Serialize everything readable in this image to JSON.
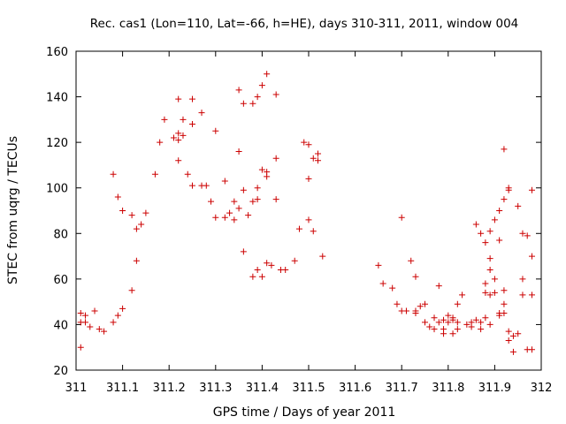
{
  "chart_data": {
    "type": "scatter",
    "title": "Rec. cas1 (Lon=110, Lat=-66, h=HE), days 310-311, 2011, window 004",
    "xlabel": "GPS time / Days of year 2011",
    "ylabel": "STEC from uqrg / TECUs",
    "xlim": [
      311,
      312
    ],
    "ylim": [
      20,
      160
    ],
    "x_ticks": [
      311,
      311.1,
      311.2,
      311.3,
      311.4,
      311.5,
      311.6,
      311.7,
      311.8,
      311.9,
      312
    ],
    "x_tick_labels": [
      "311",
      "311.1",
      "311.2",
      "311.3",
      "311.4",
      "311.5",
      "311.6",
      "311.7",
      "311.8",
      "311.9",
      "312"
    ],
    "y_ticks": [
      20,
      40,
      60,
      80,
      100,
      120,
      140,
      160
    ],
    "y_tick_labels": [
      "20",
      "40",
      "60",
      "80",
      "100",
      "120",
      "140",
      "160"
    ],
    "marker": "+",
    "color": "#cc0000",
    "series": [
      {
        "name": "STEC",
        "points": [
          [
            311.01,
            30
          ],
          [
            311.01,
            41
          ],
          [
            311.01,
            45
          ],
          [
            311.02,
            44
          ],
          [
            311.02,
            41
          ],
          [
            311.03,
            39
          ],
          [
            311.04,
            46
          ],
          [
            311.05,
            38
          ],
          [
            311.06,
            37
          ],
          [
            311.08,
            41
          ],
          [
            311.08,
            106
          ],
          [
            311.09,
            44
          ],
          [
            311.09,
            96
          ],
          [
            311.1,
            47
          ],
          [
            311.1,
            90
          ],
          [
            311.12,
            55
          ],
          [
            311.12,
            88
          ],
          [
            311.13,
            68
          ],
          [
            311.13,
            82
          ],
          [
            311.14,
            84
          ],
          [
            311.15,
            89
          ],
          [
            311.17,
            106
          ],
          [
            311.18,
            120
          ],
          [
            311.19,
            130
          ],
          [
            311.21,
            122
          ],
          [
            311.22,
            112
          ],
          [
            311.22,
            121
          ],
          [
            311.22,
            124
          ],
          [
            311.22,
            139
          ],
          [
            311.23,
            123
          ],
          [
            311.23,
            130
          ],
          [
            311.24,
            106
          ],
          [
            311.25,
            101
          ],
          [
            311.25,
            128
          ],
          [
            311.25,
            139
          ],
          [
            311.27,
            101
          ],
          [
            311.27,
            133
          ],
          [
            311.28,
            101
          ],
          [
            311.29,
            94
          ],
          [
            311.3,
            87
          ],
          [
            311.3,
            125
          ],
          [
            311.32,
            87
          ],
          [
            311.32,
            103
          ],
          [
            311.33,
            89
          ],
          [
            311.34,
            94
          ],
          [
            311.34,
            86
          ],
          [
            311.35,
            143
          ],
          [
            311.35,
            116
          ],
          [
            311.35,
            91
          ],
          [
            311.36,
            72
          ],
          [
            311.36,
            99
          ],
          [
            311.36,
            137
          ],
          [
            311.37,
            88
          ],
          [
            311.38,
            137
          ],
          [
            311.38,
            94
          ],
          [
            311.38,
            61
          ],
          [
            311.39,
            64
          ],
          [
            311.39,
            95
          ],
          [
            311.39,
            100
          ],
          [
            311.39,
            140
          ],
          [
            311.4,
            108
          ],
          [
            311.4,
            145
          ],
          [
            311.4,
            61
          ],
          [
            311.41,
            107
          ],
          [
            311.41,
            105
          ],
          [
            311.41,
            67
          ],
          [
            311.41,
            150
          ],
          [
            311.42,
            66
          ],
          [
            311.43,
            113
          ],
          [
            311.43,
            141
          ],
          [
            311.43,
            95
          ],
          [
            311.44,
            64
          ],
          [
            311.45,
            64
          ],
          [
            311.47,
            68
          ],
          [
            311.48,
            82
          ],
          [
            311.49,
            120
          ],
          [
            311.5,
            119
          ],
          [
            311.5,
            104
          ],
          [
            311.5,
            86
          ],
          [
            311.51,
            81
          ],
          [
            311.51,
            113
          ],
          [
            311.52,
            112
          ],
          [
            311.52,
            115
          ],
          [
            311.53,
            70
          ],
          [
            311.65,
            66
          ],
          [
            311.66,
            58
          ],
          [
            311.68,
            56
          ],
          [
            311.69,
            49
          ],
          [
            311.7,
            87
          ],
          [
            311.7,
            46
          ],
          [
            311.71,
            46
          ],
          [
            311.72,
            68
          ],
          [
            311.73,
            61
          ],
          [
            311.73,
            45
          ],
          [
            311.73,
            46
          ],
          [
            311.74,
            48
          ],
          [
            311.75,
            41
          ],
          [
            311.75,
            49
          ],
          [
            311.76,
            39
          ],
          [
            311.77,
            38
          ],
          [
            311.77,
            43
          ],
          [
            311.78,
            57
          ],
          [
            311.78,
            41
          ],
          [
            311.79,
            36
          ],
          [
            311.79,
            38
          ],
          [
            311.79,
            42
          ],
          [
            311.8,
            41
          ],
          [
            311.8,
            44
          ],
          [
            311.81,
            42
          ],
          [
            311.81,
            36
          ],
          [
            311.81,
            43
          ],
          [
            311.82,
            49
          ],
          [
            311.82,
            38
          ],
          [
            311.82,
            41
          ],
          [
            311.83,
            53
          ],
          [
            311.84,
            40
          ],
          [
            311.85,
            39
          ],
          [
            311.85,
            41
          ],
          [
            311.86,
            84
          ],
          [
            311.86,
            42
          ],
          [
            311.87,
            41
          ],
          [
            311.87,
            80
          ],
          [
            311.87,
            38
          ],
          [
            311.88,
            76
          ],
          [
            311.88,
            54
          ],
          [
            311.88,
            58
          ],
          [
            311.88,
            43
          ],
          [
            311.89,
            81
          ],
          [
            311.89,
            53
          ],
          [
            311.89,
            64
          ],
          [
            311.89,
            69
          ],
          [
            311.89,
            40
          ],
          [
            311.9,
            86
          ],
          [
            311.9,
            54
          ],
          [
            311.9,
            60
          ],
          [
            311.91,
            77
          ],
          [
            311.91,
            90
          ],
          [
            311.91,
            45
          ],
          [
            311.91,
            44
          ],
          [
            311.92,
            95
          ],
          [
            311.92,
            117
          ],
          [
            311.92,
            55
          ],
          [
            311.92,
            49
          ],
          [
            311.92,
            45
          ],
          [
            311.93,
            37
          ],
          [
            311.93,
            33
          ],
          [
            311.93,
            100
          ],
          [
            311.93,
            99
          ],
          [
            311.94,
            35
          ],
          [
            311.94,
            28
          ],
          [
            311.95,
            36
          ],
          [
            311.95,
            92
          ],
          [
            311.96,
            80
          ],
          [
            311.96,
            60
          ],
          [
            311.96,
            53
          ],
          [
            311.97,
            29
          ],
          [
            311.97,
            79
          ],
          [
            311.98,
            99
          ],
          [
            311.98,
            70
          ],
          [
            311.98,
            53
          ],
          [
            311.98,
            29
          ]
        ]
      }
    ]
  }
}
